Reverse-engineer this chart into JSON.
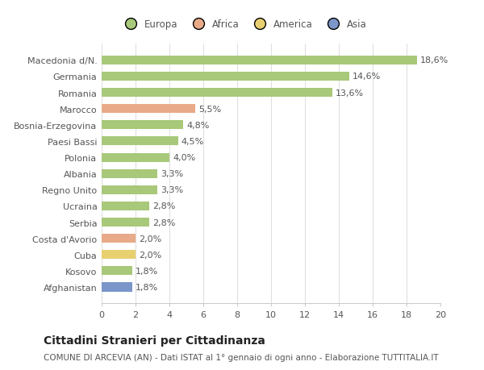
{
  "categories": [
    "Afghanistan",
    "Kosovo",
    "Cuba",
    "Costa d'Avorio",
    "Serbia",
    "Ucraina",
    "Regno Unito",
    "Albania",
    "Polonia",
    "Paesi Bassi",
    "Bosnia-Erzegovina",
    "Marocco",
    "Romania",
    "Germania",
    "Macedonia d/N."
  ],
  "values": [
    1.8,
    1.8,
    2.0,
    2.0,
    2.8,
    2.8,
    3.3,
    3.3,
    4.0,
    4.5,
    4.8,
    5.5,
    13.6,
    14.6,
    18.6
  ],
  "labels": [
    "1,8%",
    "1,8%",
    "2,0%",
    "2,0%",
    "2,8%",
    "2,8%",
    "3,3%",
    "3,3%",
    "4,0%",
    "4,5%",
    "4,8%",
    "5,5%",
    "13,6%",
    "14,6%",
    "18,6%"
  ],
  "colors": [
    "#7b96c8",
    "#a8c87a",
    "#e8d070",
    "#e8aa88",
    "#a8c87a",
    "#a8c87a",
    "#a8c87a",
    "#a8c87a",
    "#a8c87a",
    "#a8c87a",
    "#a8c87a",
    "#e8aa88",
    "#a8c87a",
    "#a8c87a",
    "#a8c87a"
  ],
  "legend_labels": [
    "Europa",
    "Africa",
    "America",
    "Asia"
  ],
  "legend_colors": [
    "#a8c87a",
    "#e8aa88",
    "#e8d070",
    "#7b96c8"
  ],
  "title": "Cittadini Stranieri per Cittadinanza",
  "subtitle": "COMUNE DI ARCEVIA (AN) - Dati ISTAT al 1° gennaio di ogni anno - Elaborazione TUTTITALIA.IT",
  "xlim": [
    0,
    20
  ],
  "xticks": [
    0,
    2,
    4,
    6,
    8,
    10,
    12,
    14,
    16,
    18,
    20
  ],
  "background_color": "#ffffff",
  "bar_height": 0.55,
  "grid_color": "#e0e0e0",
  "label_fontsize": 8,
  "tick_fontsize": 8,
  "title_fontsize": 10,
  "subtitle_fontsize": 7.5
}
